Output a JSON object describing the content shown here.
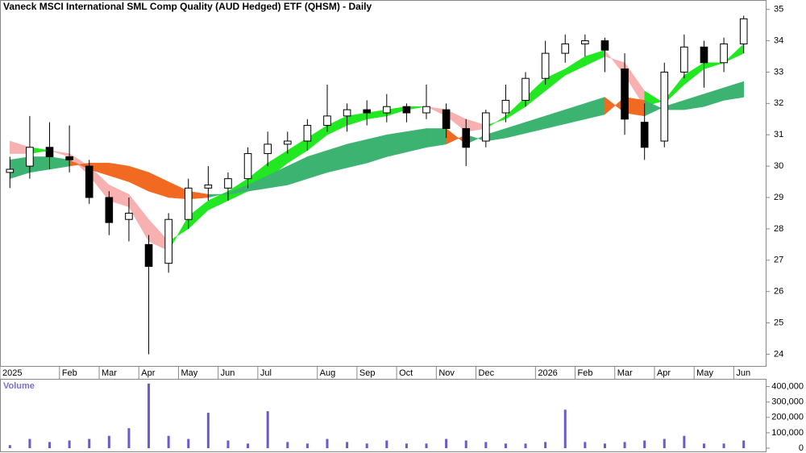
{
  "chart_data": {
    "type": "candlestick",
    "title": "Vaneck MSCI International SML Comp Quality (AUD Hedged) ETF (QHSM) - Daily",
    "categories": [
      "2025",
      null,
      null,
      "Feb",
      null,
      "Mar",
      null,
      "Apr",
      null,
      "May",
      null,
      "Jun",
      null,
      "Jul",
      null,
      null,
      "Aug",
      null,
      "Sep",
      null,
      "Oct",
      null,
      "Nov",
      null,
      "Dec",
      null,
      null,
      "2026",
      null,
      "Feb",
      null,
      "Mar",
      null,
      "Apr",
      null,
      "May",
      null,
      "Jun"
    ],
    "open": [
      29.8,
      30.0,
      30.6,
      30.3,
      30.0,
      29.0,
      28.3,
      27.5,
      26.9,
      28.3,
      29.3,
      29.3,
      29.6,
      30.4,
      30.7,
      30.8,
      31.3,
      31.6,
      31.8,
      31.7,
      31.9,
      31.7,
      31.8,
      31.2,
      30.8,
      31.7,
      32.1,
      32.8,
      33.6,
      33.9,
      34.0,
      33.1,
      31.4,
      30.8,
      33.0,
      33.8,
      33.3,
      33.9
    ],
    "high": [
      30.3,
      31.6,
      31.4,
      31.3,
      30.2,
      29.2,
      29.0,
      27.8,
      28.5,
      29.6,
      30.0,
      29.8,
      30.6,
      31.1,
      31.1,
      31.5,
      32.6,
      32.0,
      32.1,
      32.3,
      32.0,
      32.6,
      32.0,
      31.5,
      31.8,
      32.6,
      33.0,
      34.0,
      34.2,
      34.2,
      34.1,
      33.6,
      32.0,
      33.3,
      34.2,
      34.0,
      34.1,
      34.8
    ],
    "low": [
      29.3,
      29.6,
      29.9,
      29.8,
      28.8,
      27.8,
      27.6,
      24.0,
      26.6,
      28.0,
      28.9,
      28.9,
      29.3,
      30.0,
      30.4,
      30.5,
      31.1,
      31.1,
      31.3,
      31.4,
      31.4,
      31.5,
      30.9,
      30.0,
      30.6,
      31.4,
      31.9,
      32.6,
      33.3,
      33.5,
      33.0,
      31.0,
      30.2,
      30.6,
      32.8,
      32.5,
      33.0,
      33.6
    ],
    "close": [
      29.9,
      30.6,
      30.3,
      30.2,
      29.0,
      28.2,
      28.5,
      26.8,
      28.3,
      29.3,
      29.4,
      29.6,
      30.4,
      30.7,
      30.8,
      31.3,
      31.6,
      31.8,
      31.7,
      31.9,
      31.7,
      31.9,
      31.2,
      30.6,
      31.7,
      32.1,
      32.8,
      33.6,
      33.9,
      34.0,
      33.7,
      31.5,
      30.6,
      33.0,
      33.8,
      33.3,
      33.9,
      34.7
    ],
    "up_color": "#ffffff",
    "down_color": "#000000",
    "ribbons": [
      {
        "fast": [
          30.4,
          30.4,
          30.5,
          30.3,
          29.7,
          28.9,
          28.7,
          27.6,
          27.3,
          28.4,
          28.9,
          29.2,
          29.6,
          30.1,
          30.5,
          30.9,
          31.3,
          31.6,
          31.7,
          31.8,
          31.9,
          31.9,
          31.6,
          31.1,
          31.2,
          31.6,
          32.2,
          32.8,
          33.1,
          33.5,
          33.7,
          32.9,
          31.9,
          32.1,
          32.9,
          33.3,
          33.3,
          33.9
        ],
        "slow": [
          30.8,
          30.6,
          30.5,
          30.4,
          30.0,
          29.4,
          29.1,
          28.3,
          27.6,
          28.0,
          28.6,
          28.9,
          29.2,
          29.6,
          30.1,
          30.5,
          31.0,
          31.3,
          31.5,
          31.6,
          31.8,
          31.9,
          31.8,
          31.5,
          31.3,
          31.5,
          31.9,
          32.4,
          32.9,
          33.2,
          33.5,
          33.3,
          32.4,
          32.0,
          32.6,
          33.1,
          33.3,
          33.6
        ],
        "up_color": "#22e822",
        "down_color": "#f7b1b1"
      },
      {
        "fast": [
          30.2,
          30.3,
          30.3,
          30.2,
          29.9,
          29.7,
          29.5,
          29.2,
          29.0,
          28.95,
          29.0,
          29.15,
          29.4,
          29.7,
          30.0,
          30.3,
          30.5,
          30.7,
          30.85,
          31.0,
          31.1,
          31.2,
          31.2,
          30.7,
          31.0,
          31.2,
          31.4,
          31.6,
          31.8,
          32.0,
          32.2,
          31.7,
          31.6,
          31.9,
          32.1,
          32.3,
          32.5,
          32.7
        ],
        "slow": [
          29.6,
          29.8,
          29.9,
          30.0,
          30.1,
          30.1,
          30.0,
          29.8,
          29.5,
          29.2,
          29.1,
          29.1,
          29.2,
          29.3,
          29.4,
          29.6,
          29.8,
          29.95,
          30.1,
          30.3,
          30.45,
          30.6,
          30.7,
          31.0,
          30.8,
          30.9,
          31.05,
          31.2,
          31.35,
          31.5,
          31.65,
          32.2,
          32.1,
          31.8,
          31.8,
          31.9,
          32.1,
          32.2
        ],
        "up_color": "#3cb371",
        "down_color": "#f26a21"
      }
    ],
    "ylim": [
      23.6,
      35.3
    ],
    "yticks": [
      24,
      25,
      26,
      27,
      28,
      29,
      30,
      31,
      32,
      33,
      34,
      35
    ],
    "volume": {
      "label": "Volume",
      "color": "#6a5acd",
      "values": [
        20000,
        60000,
        40000,
        50000,
        60000,
        80000,
        130000,
        420000,
        80000,
        60000,
        230000,
        50000,
        30000,
        240000,
        40000,
        30000,
        60000,
        40000,
        30000,
        50000,
        30000,
        30000,
        60000,
        50000,
        40000,
        30000,
        30000,
        40000,
        250000,
        40000,
        30000,
        40000,
        50000,
        60000,
        80000,
        30000,
        30000,
        50000
      ],
      "ylim": [
        0,
        440000
      ],
      "yticks": [
        0,
        {
          "value": 100000,
          "label": "100,000"
        },
        {
          "value": 200000,
          "label": "200,000"
        },
        {
          "value": 300000,
          "label": "300,000"
        },
        {
          "value": 400000,
          "label": "400,000"
        }
      ]
    }
  }
}
